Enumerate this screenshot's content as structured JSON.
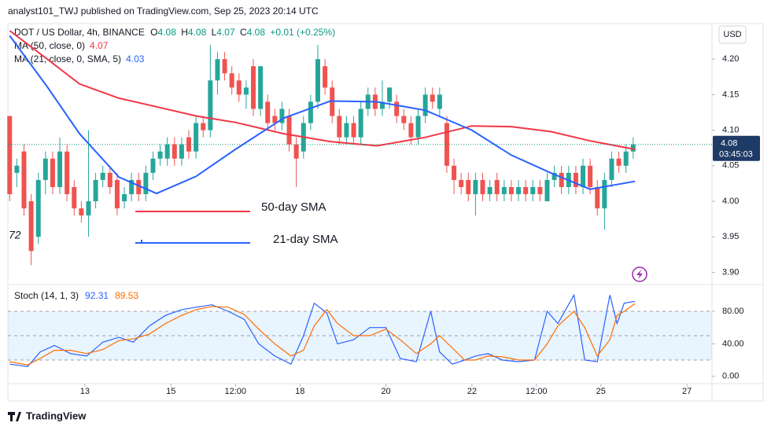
{
  "header": {
    "attribution": "analyst101_TWJ published on TradingView.com, Sep 25, 2023 20:14 UTC",
    "symbol": "DOT / US Dollar, 4h, BINANCE",
    "ohlc": [
      {
        "key": "O",
        "value": 4.08
      },
      {
        "key": "H",
        "value": 4.08
      },
      {
        "key": "L",
        "value": 4.07
      },
      {
        "key": "C",
        "value": 4.08
      }
    ],
    "change": "+0.01 (+0.25%)",
    "currency": "USD",
    "left_label": "72",
    "footer": "TradingView"
  },
  "annotations": [
    "50-day SMA",
    "21-day SMA"
  ],
  "chart_data": [
    {
      "type": "candlestick",
      "up_color": "#26a69a",
      "down_color": "#ef5350",
      "xlim": [
        -1,
        392
      ],
      "ylim": [
        3.885,
        4.25
      ],
      "xticks": [
        {
          "value": 42,
          "label": "13"
        },
        {
          "value": 90,
          "label": "15"
        },
        {
          "value": 126,
          "label": "12:00"
        },
        {
          "value": 162,
          "label": "18"
        },
        {
          "value": 210,
          "label": "20"
        },
        {
          "value": 258,
          "label": "22"
        },
        {
          "value": 294,
          "label": "12:00"
        },
        {
          "value": 330,
          "label": "25"
        },
        {
          "value": 378,
          "label": "27"
        }
      ],
      "yticks": [
        {
          "value": 3.9,
          "label": "3.90"
        },
        3.95,
        {
          "value": 4.0,
          "label": "4.00"
        },
        4.05,
        {
          "value": 4.1,
          "label": "4.10"
        },
        4.15,
        {
          "value": 4.2,
          "label": "4.20"
        }
      ],
      "last_price": 4.08,
      "countdown": "03:45:03",
      "x": [
        0,
        4,
        8,
        12,
        16,
        20,
        24,
        28,
        32,
        36,
        40,
        44,
        48,
        52,
        56,
        60,
        64,
        68,
        72,
        76,
        80,
        84,
        88,
        92,
        96,
        100,
        104,
        108,
        112,
        116,
        120,
        124,
        128,
        132,
        136,
        140,
        144,
        148,
        152,
        156,
        160,
        164,
        168,
        172,
        176,
        180,
        184,
        188,
        192,
        196,
        200,
        204,
        208,
        212,
        216,
        220,
        224,
        228,
        232,
        236,
        240,
        244,
        248,
        252,
        256,
        260,
        264,
        268,
        272,
        276,
        280,
        284,
        288,
        292,
        296,
        300,
        304,
        308,
        312,
        316,
        320,
        324,
        328,
        332,
        336,
        340,
        344,
        348
      ],
      "candles": [
        [
          4.12,
          4.12,
          4.0,
          4.01
        ],
        [
          4.04,
          4.06,
          4.02,
          4.05
        ],
        [
          4.07,
          4.08,
          3.98,
          3.99
        ],
        [
          4.0,
          4.01,
          3.91,
          3.93
        ],
        [
          3.95,
          4.04,
          3.94,
          4.03
        ],
        [
          4.03,
          4.07,
          4.01,
          4.06
        ],
        [
          4.06,
          4.07,
          4.01,
          4.02
        ],
        [
          4.02,
          4.09,
          4.01,
          4.07
        ],
        [
          4.07,
          4.08,
          4.0,
          4.01
        ],
        [
          4.02,
          4.03,
          3.98,
          3.99
        ],
        [
          3.99,
          4.0,
          3.97,
          3.98
        ],
        [
          3.98,
          4.1,
          3.95,
          4.0
        ],
        [
          4.0,
          4.04,
          3.99,
          4.03
        ],
        [
          4.03,
          4.05,
          4.02,
          4.04
        ],
        [
          4.04,
          4.05,
          4.01,
          4.02
        ],
        [
          4.03,
          4.04,
          3.98,
          3.99
        ],
        [
          4.0,
          4.02,
          3.99,
          4.01
        ],
        [
          4.01,
          4.04,
          4.0,
          4.03
        ],
        [
          4.03,
          4.04,
          4.0,
          4.01
        ],
        [
          4.01,
          4.05,
          4.0,
          4.04
        ],
        [
          4.04,
          4.07,
          4.03,
          4.06
        ],
        [
          4.06,
          4.08,
          4.05,
          4.07
        ],
        [
          4.06,
          4.09,
          4.05,
          4.08
        ],
        [
          4.08,
          4.09,
          4.05,
          4.06
        ],
        [
          4.06,
          4.09,
          4.05,
          4.08
        ],
        [
          4.09,
          4.1,
          4.06,
          4.07
        ],
        [
          4.07,
          4.12,
          4.06,
          4.11
        ],
        [
          4.11,
          4.12,
          4.09,
          4.1
        ],
        [
          4.1,
          4.22,
          4.09,
          4.17
        ],
        [
          4.17,
          4.21,
          4.15,
          4.2
        ],
        [
          4.2,
          4.21,
          4.17,
          4.18
        ],
        [
          4.18,
          4.19,
          4.15,
          4.16
        ],
        [
          4.17,
          4.18,
          4.14,
          4.15
        ],
        [
          4.15,
          4.17,
          4.13,
          4.16
        ],
        [
          4.19,
          4.2,
          4.12,
          4.13
        ],
        [
          4.13,
          4.19,
          4.12,
          4.19
        ],
        [
          4.14,
          4.15,
          4.1,
          4.11
        ],
        [
          4.12,
          4.13,
          4.1,
          4.11
        ],
        [
          4.11,
          4.14,
          4.1,
          4.13
        ],
        [
          4.12,
          4.13,
          4.07,
          4.08
        ],
        [
          4.08,
          4.09,
          4.02,
          4.06
        ],
        [
          4.07,
          4.12,
          4.06,
          4.11
        ],
        [
          4.11,
          4.15,
          4.1,
          4.14
        ],
        [
          4.14,
          4.22,
          4.13,
          4.2
        ],
        [
          4.19,
          4.2,
          4.15,
          4.16
        ],
        [
          4.16,
          4.17,
          4.11,
          4.12
        ],
        [
          4.12,
          4.13,
          4.08,
          4.09
        ],
        [
          4.09,
          4.12,
          4.08,
          4.11
        ],
        [
          4.11,
          4.12,
          4.08,
          4.09
        ],
        [
          4.09,
          4.14,
          4.08,
          4.13
        ],
        [
          4.13,
          4.16,
          4.12,
          4.15
        ],
        [
          4.15,
          4.16,
          4.12,
          4.13
        ],
        [
          4.13,
          4.17,
          4.12,
          4.14
        ],
        [
          4.14,
          4.16,
          4.13,
          4.16
        ],
        [
          4.14,
          4.15,
          4.11,
          4.12
        ],
        [
          4.12,
          4.13,
          4.1,
          4.11
        ],
        [
          4.11,
          4.12,
          4.08,
          4.09
        ],
        [
          4.09,
          4.13,
          4.08,
          4.12
        ],
        [
          4.12,
          4.16,
          4.11,
          4.15
        ],
        [
          4.15,
          4.16,
          4.13,
          4.14
        ],
        [
          4.13,
          4.16,
          4.12,
          4.15
        ],
        [
          4.11,
          4.12,
          4.04,
          4.05
        ],
        [
          4.05,
          4.06,
          4.01,
          4.03
        ],
        [
          4.03,
          4.04,
          4.01,
          4.02
        ],
        [
          4.03,
          4.04,
          4.0,
          4.01
        ],
        [
          4.01,
          4.04,
          3.98,
          4.03
        ],
        [
          4.03,
          4.04,
          4.0,
          4.01
        ],
        [
          4.01,
          4.03,
          4.0,
          4.02
        ],
        [
          4.03,
          4.04,
          4.0,
          4.01
        ],
        [
          4.01,
          4.03,
          4.0,
          4.02
        ],
        [
          4.02,
          4.03,
          4.0,
          4.01
        ],
        [
          4.01,
          4.03,
          4.0,
          4.02
        ],
        [
          4.02,
          4.03,
          4.0,
          4.01
        ],
        [
          4.01,
          4.03,
          4.0,
          4.02
        ],
        [
          4.02,
          4.03,
          4.0,
          4.01
        ],
        [
          4.0,
          4.04,
          4.0,
          4.03
        ],
        [
          4.03,
          4.05,
          4.02,
          4.04
        ],
        [
          4.04,
          4.05,
          4.01,
          4.02
        ],
        [
          4.02,
          4.05,
          4.01,
          4.04
        ],
        [
          4.04,
          4.05,
          4.01,
          4.02
        ],
        [
          4.02,
          4.06,
          4.01,
          4.05
        ],
        [
          4.05,
          4.06,
          4.01,
          4.02
        ],
        [
          4.02,
          4.03,
          3.98,
          3.99
        ],
        [
          3.99,
          4.04,
          3.96,
          4.03
        ],
        [
          4.03,
          4.07,
          4.02,
          4.06
        ],
        [
          4.06,
          4.07,
          4.04,
          4.05
        ],
        [
          4.05,
          4.08,
          4.04,
          4.07
        ],
        [
          4.07,
          4.09,
          4.06,
          4.08
        ]
      ],
      "series": [
        {
          "name": "MA (50, close, 0)",
          "color": "#f23645",
          "last": 4.07,
          "x": [
            0,
            21,
            39,
            61,
            82,
            104,
            126,
            153,
            179,
            205,
            232,
            258,
            280,
            302,
            324,
            349
          ],
          "values": [
            4.24,
            4.2,
            4.165,
            4.145,
            4.133,
            4.12,
            4.111,
            4.095,
            4.084,
            4.078,
            4.09,
            4.106,
            4.105,
            4.098,
            4.085,
            4.073
          ]
        },
        {
          "name": "MA (21, close, 0, SMA, 5)",
          "color": "#2962ff",
          "last": 4.03,
          "x": [
            0,
            21,
            39,
            61,
            82,
            104,
            126,
            153,
            179,
            205,
            232,
            258,
            280,
            302,
            324,
            349
          ],
          "values": [
            4.233,
            4.161,
            4.095,
            4.034,
            4.011,
            4.035,
            4.073,
            4.117,
            4.141,
            4.14,
            4.128,
            4.1,
            4.065,
            4.04,
            4.017,
            4.028
          ]
        }
      ]
    },
    {
      "type": "line",
      "title": "Stoch (14, 1, 3)",
      "xlim": [
        -1,
        392
      ],
      "ylim": [
        -9,
        110
      ],
      "levels": [
        80,
        50,
        20
      ],
      "yticks": [
        {
          "value": 0,
          "label": "0.00"
        },
        {
          "value": 40,
          "label": "40.00"
        },
        {
          "value": 80,
          "label": "80.00"
        }
      ],
      "series": [
        {
          "color": "#2962ff",
          "last": 92.31,
          "x": [
            0,
            10,
            17,
            25,
            34,
            43,
            52,
            61,
            69,
            78,
            87,
            96,
            104,
            113,
            122,
            131,
            139,
            148,
            157,
            164,
            170,
            177,
            183,
            192,
            201,
            210,
            218,
            227,
            235,
            240,
            247,
            254,
            260,
            267,
            275,
            284,
            293,
            300,
            306,
            315,
            321,
            328,
            335,
            339,
            343,
            349
          ],
          "values": [
            15,
            12,
            30,
            38,
            28,
            25,
            42,
            48,
            42,
            62,
            75,
            82,
            85,
            88,
            80,
            70,
            40,
            25,
            15,
            50,
            90,
            78,
            40,
            45,
            60,
            60,
            22,
            18,
            80,
            30,
            15,
            20,
            25,
            28,
            20,
            18,
            20,
            80,
            65,
            100,
            20,
            18,
            100,
            65,
            90,
            92.31
          ]
        },
        {
          "color": "#ff6d00",
          "last": 89.53,
          "x": [
            0,
            10,
            17,
            25,
            34,
            43,
            52,
            61,
            69,
            78,
            87,
            96,
            104,
            113,
            122,
            131,
            139,
            148,
            157,
            164,
            170,
            177,
            183,
            192,
            201,
            210,
            218,
            227,
            235,
            240,
            247,
            254,
            260,
            267,
            275,
            284,
            293,
            300,
            306,
            315,
            321,
            328,
            335,
            339,
            343,
            349
          ],
          "values": [
            18,
            14,
            22,
            32,
            32,
            28,
            33,
            44,
            46,
            52,
            65,
            75,
            82,
            86,
            85,
            76,
            58,
            40,
            25,
            32,
            62,
            82,
            65,
            50,
            50,
            58,
            45,
            28,
            40,
            50,
            35,
            20,
            20,
            25,
            24,
            20,
            20,
            40,
            62,
            80,
            60,
            25,
            45,
            75,
            80,
            89.53
          ]
        }
      ]
    }
  ]
}
